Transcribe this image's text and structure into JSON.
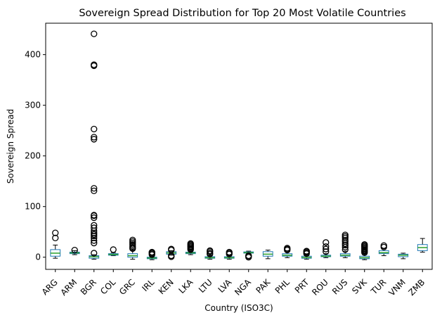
{
  "chart_data": {
    "type": "box",
    "title": "Sovereign Spread Distribution for Top 20 Most Volatile Countries",
    "xlabel": "Country (ISO3C)",
    "ylabel": "Sovereign Spread",
    "ylim": [
      -24,
      462
    ],
    "yticks": [
      0,
      100,
      200,
      300,
      400
    ],
    "grid": false,
    "colors": {
      "box": "#1f77b4",
      "median": "#2ca02c",
      "whisker": "#000000",
      "outlier": "#000000"
    },
    "categories": [
      "ARG",
      "ARM",
      "BGR",
      "COL",
      "GRC",
      "IRL",
      "KEN",
      "LKA",
      "LTU",
      "LVA",
      "NGA",
      "PAK",
      "PHL",
      "PRT",
      "ROU",
      "RUS",
      "SVK",
      "TUR",
      "VNM",
      "ZMB"
    ],
    "boxes": [
      {
        "q1": 2,
        "median": 8,
        "q3": 15,
        "whislo": -2,
        "whishi": 24,
        "fliers": [
          38,
          48
        ]
      },
      {
        "q1": 7,
        "median": 8.5,
        "q3": 10,
        "whislo": 5,
        "whishi": 13,
        "fliers": [
          14
        ]
      },
      {
        "q1": -2,
        "median": 1,
        "q3": 3,
        "whislo": -4,
        "whishi": 5,
        "fliers": [
          8,
          28,
          33,
          38,
          42,
          45,
          48,
          52,
          58,
          63,
          78,
          82,
          83,
          131,
          136,
          233,
          237,
          253,
          378,
          380,
          441
        ]
      },
      {
        "q1": 4,
        "median": 5.5,
        "q3": 7,
        "whislo": 3,
        "whishi": 9,
        "fliers": [
          15
        ]
      },
      {
        "q1": 0,
        "median": 3,
        "q3": 7,
        "whislo": -4,
        "whishi": 15,
        "fliers": [
          17,
          19,
          22,
          25,
          28,
          31,
          34
        ]
      },
      {
        "q1": -3,
        "median": -1.5,
        "q3": 0,
        "whislo": -5,
        "whishi": 4,
        "fliers": [
          5,
          7,
          9,
          10
        ]
      },
      {
        "q1": 6,
        "median": 8.5,
        "q3": 11,
        "whislo": 4,
        "whishi": 13,
        "fliers": [
          1,
          3,
          14,
          16
        ]
      },
      {
        "q1": 7,
        "median": 8.5,
        "q3": 10,
        "whislo": 5,
        "whishi": 14,
        "fliers": [
          15,
          17,
          19,
          21,
          23,
          25,
          27
        ]
      },
      {
        "q1": -2,
        "median": -1,
        "q3": 1,
        "whislo": -4,
        "whishi": 4,
        "fliers": [
          6,
          8,
          11,
          13
        ]
      },
      {
        "q1": -2,
        "median": -1,
        "q3": 1,
        "whislo": -4,
        "whishi": 4,
        "fliers": [
          6,
          8,
          10
        ]
      },
      {
        "q1": 8,
        "median": 9,
        "q3": 10.5,
        "whislo": 7,
        "whishi": 12,
        "fliers": [
          0,
          2,
          3
        ]
      },
      {
        "q1": 2,
        "median": 6,
        "q3": 11,
        "whislo": -3,
        "whishi": 14,
        "fliers": []
      },
      {
        "q1": 2,
        "median": 4,
        "q3": 7,
        "whislo": -1,
        "whishi": 11,
        "fliers": [
          14,
          16,
          18
        ]
      },
      {
        "q1": -2,
        "median": -0.5,
        "q3": 2,
        "whislo": -4,
        "whishi": 5,
        "fliers": [
          7,
          9,
          11,
          12
        ]
      },
      {
        "q1": 1,
        "median": 2,
        "q3": 4,
        "whislo": -1,
        "whishi": 7,
        "fliers": [
          11,
          16,
          21,
          29
        ]
      },
      {
        "q1": 2,
        "median": 4,
        "q3": 7,
        "whislo": -1,
        "whishi": 12,
        "fliers": [
          15,
          20,
          24,
          27,
          31,
          34,
          38,
          41,
          44
        ]
      },
      {
        "q1": -3,
        "median": -1,
        "q3": 2,
        "whislo": -5,
        "whishi": 7,
        "fliers": [
          9,
          11,
          13,
          15,
          17,
          19,
          21,
          23,
          25
        ]
      },
      {
        "q1": 7,
        "median": 9,
        "q3": 13,
        "whislo": 3,
        "whishi": 17,
        "fliers": [
          20,
          23
        ]
      },
      {
        "q1": 1,
        "median": 4,
        "q3": 6,
        "whislo": -3,
        "whishi": 8,
        "fliers": []
      },
      {
        "q1": 13,
        "median": 19,
        "q3": 25,
        "whislo": 10,
        "whishi": 37,
        "fliers": []
      }
    ]
  }
}
